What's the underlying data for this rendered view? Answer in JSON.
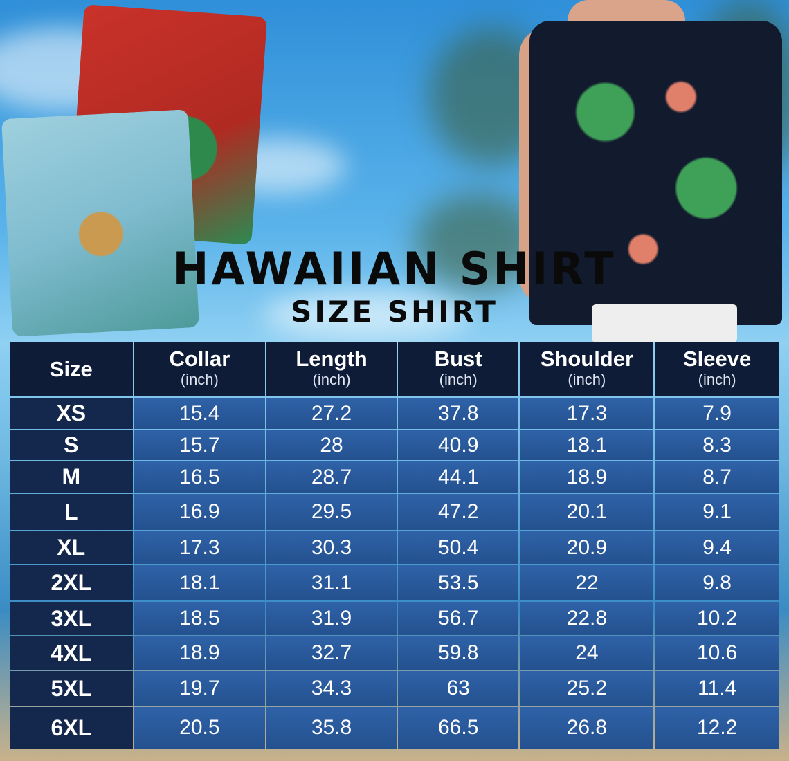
{
  "title": "HAWAIIAN SHIRT",
  "subtitle": "SIZE SHIRT",
  "colors": {
    "header_bg": "#0f1c38",
    "size_cell_bg": "#14274d",
    "value_cell_bg": "#2a5a9c",
    "title_text": "#0a0a0a"
  },
  "table": {
    "headers": [
      {
        "label": "Size",
        "unit": ""
      },
      {
        "label": "Collar",
        "unit": "(inch)"
      },
      {
        "label": "Length",
        "unit": "(inch)"
      },
      {
        "label": "Bust",
        "unit": "(inch)"
      },
      {
        "label": "Shoulder",
        "unit": "(inch)"
      },
      {
        "label": "Sleeve",
        "unit": "(inch)"
      }
    ],
    "rows": [
      [
        "XS",
        "15.4",
        "27.2",
        "37.8",
        "17.3",
        "7.9"
      ],
      [
        "S",
        "15.7",
        "28",
        "40.9",
        "18.1",
        "8.3"
      ],
      [
        "M",
        "16.5",
        "28.7",
        "44.1",
        "18.9",
        "8.7"
      ],
      [
        "L",
        "16.9",
        "29.5",
        "47.2",
        "20.1",
        "9.1"
      ],
      [
        "XL",
        "17.3",
        "30.3",
        "50.4",
        "20.9",
        "9.4"
      ],
      [
        "2XL",
        "18.1",
        "31.1",
        "53.5",
        "22",
        "9.8"
      ],
      [
        "3XL",
        "18.5",
        "31.9",
        "56.7",
        "22.8",
        "10.2"
      ],
      [
        "4XL",
        "18.9",
        "32.7",
        "59.8",
        "24",
        "10.6"
      ],
      [
        "5XL",
        "19.7",
        "34.3",
        "63",
        "25.2",
        "11.4"
      ],
      [
        "6XL",
        "20.5",
        "35.8",
        "66.5",
        "26.8",
        "12.2"
      ]
    ]
  }
}
